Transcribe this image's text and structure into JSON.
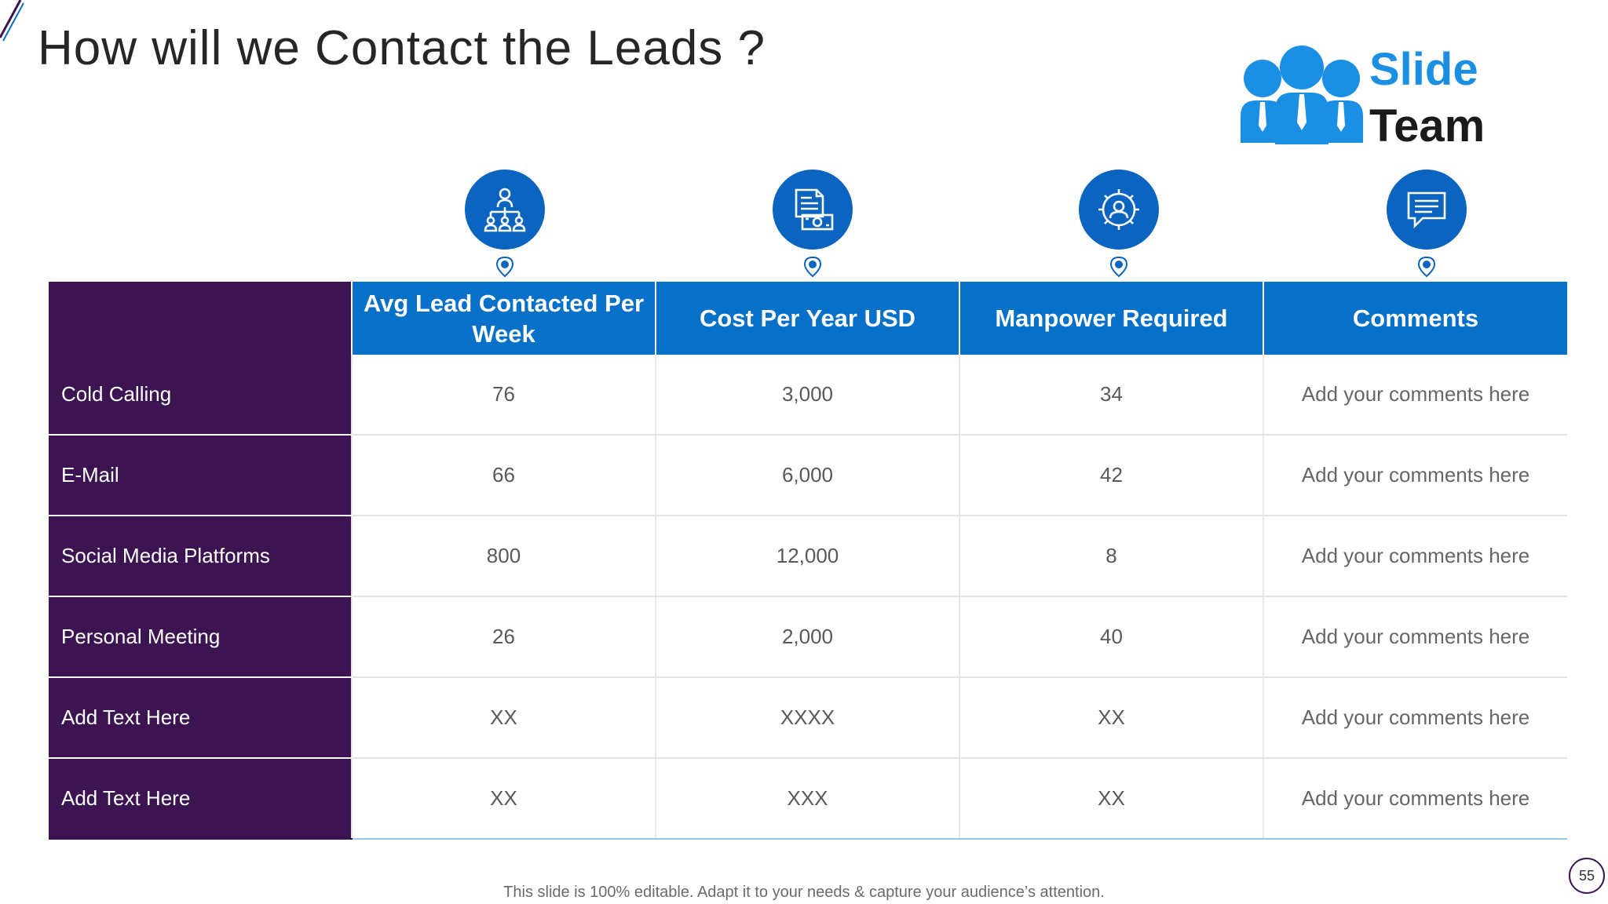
{
  "slide": {
    "title": "How will we Contact the Leads ?",
    "page_number": "55",
    "footer_note": "This slide is 100% editable. Adapt it to your needs & capture your audience’s attention."
  },
  "logo": {
    "word_1": "Slide",
    "word_2": "Team",
    "colors": {
      "people": "#1a8fe3",
      "word_1": "#1a8fe3",
      "word_2": "#1a1a1a"
    }
  },
  "theme": {
    "accent_blue": "#0770c8",
    "icon_blue": "#0b64c0",
    "row_label_purple": "#3d1452"
  },
  "column_icons": [
    "org-chart-icon",
    "invoice-money-icon",
    "gear-person-icon",
    "chat-bubble-icon"
  ],
  "table": {
    "headers": [
      "Avg Lead Contacted Per Week",
      "Cost Per Year USD",
      "Manpower Required",
      "Comments"
    ],
    "rows": [
      {
        "label": "Cold Calling",
        "cells": [
          "76",
          "3,000",
          "34",
          "Add your comments here"
        ]
      },
      {
        "label": "E-Mail",
        "cells": [
          "66",
          "6,000",
          "42",
          "Add your comments here"
        ]
      },
      {
        "label": "Social Media Platforms",
        "cells": [
          "800",
          "12,000",
          "8",
          "Add your comments here"
        ]
      },
      {
        "label": "Personal Meeting",
        "cells": [
          "26",
          "2,000",
          "40",
          "Add your comments here"
        ]
      },
      {
        "label": "Add Text Here",
        "cells": [
          "XX",
          "XXXX",
          "XX",
          "Add your comments here"
        ]
      },
      {
        "label": "Add Text Here",
        "cells": [
          "XX",
          "XXX",
          "XX",
          "Add your comments here"
        ]
      }
    ]
  }
}
